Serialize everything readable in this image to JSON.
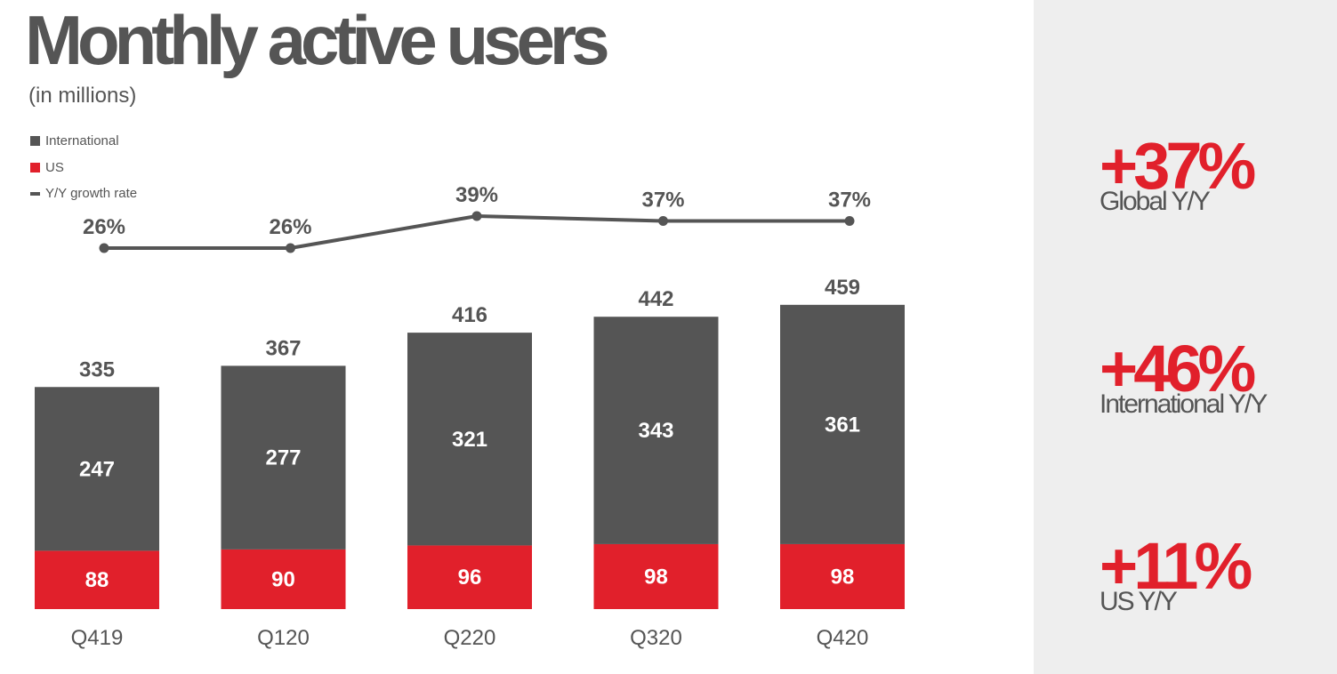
{
  "title": "Monthly active users",
  "subtitle": "(in millions)",
  "legend": {
    "international": "International",
    "us": "US",
    "growth": "Y/Y growth rate"
  },
  "colors": {
    "international": "#555555",
    "us": "#e1202b",
    "growth_line": "#555555",
    "sidebar_bg": "#eeeeee"
  },
  "stats": [
    {
      "value": "+37%",
      "label": "Global Y/Y"
    },
    {
      "value": "+46%",
      "label": "International Y/Y"
    },
    {
      "value": "+11%",
      "label": "US Y/Y"
    }
  ],
  "chart_data": {
    "type": "bar",
    "stacked": true,
    "categories": [
      "Q419",
      "Q120",
      "Q220",
      "Q320",
      "Q420"
    ],
    "series": [
      {
        "name": "US",
        "values": [
          88,
          90,
          96,
          98,
          98
        ]
      },
      {
        "name": "International",
        "values": [
          247,
          277,
          321,
          343,
          361
        ]
      }
    ],
    "totals": [
      335,
      367,
      416,
      442,
      459
    ],
    "line_series": {
      "name": "Y/Y growth rate",
      "values": [
        26,
        26,
        39,
        37,
        37
      ],
      "labels": [
        "26%",
        "26%",
        "39%",
        "37%",
        "37%"
      ]
    },
    "legend_position": "top-left"
  }
}
